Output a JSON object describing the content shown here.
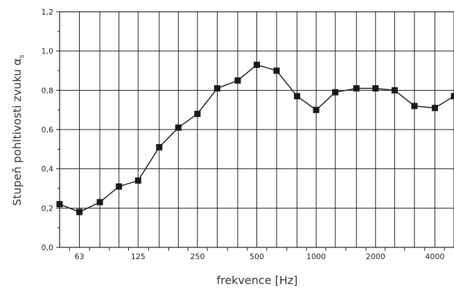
{
  "chart_data": {
    "type": "line",
    "title": "",
    "xlabel": "frekvence [Hz]",
    "ylabel": "Stupeň pohltivosti zvuku α",
    "ylabel_subscript": "s",
    "x_scale": "log",
    "x_values": [
      50,
      63,
      80,
      100,
      125,
      160,
      200,
      250,
      315,
      400,
      500,
      630,
      800,
      1000,
      1250,
      1600,
      2000,
      2500,
      3150,
      4000,
      5000
    ],
    "x_tick_labels": [
      "63",
      "125",
      "250",
      "500",
      "1000",
      "2000",
      "4000"
    ],
    "x_tick_positions": [
      63,
      125,
      250,
      500,
      1000,
      2000,
      4000
    ],
    "ylim": [
      0,
      1.2
    ],
    "y_tick_labels": [
      "0,0",
      "0,2",
      "0,4",
      "0,6",
      "0,8",
      "1,0",
      "1,2"
    ],
    "y_tick_values": [
      0,
      0.2,
      0.4,
      0.6,
      0.8,
      1.0,
      1.2
    ],
    "grid": true,
    "marker": "square",
    "series": [
      {
        "values": [
          0.22,
          0.18,
          0.23,
          0.31,
          0.34,
          0.51,
          0.61,
          0.68,
          0.81,
          0.85,
          0.93,
          0.9,
          0.77,
          0.7,
          0.79,
          0.81,
          0.81,
          0.8,
          0.72,
          0.71,
          0.77
        ],
        "color": "#1a1a1a"
      }
    ]
  }
}
